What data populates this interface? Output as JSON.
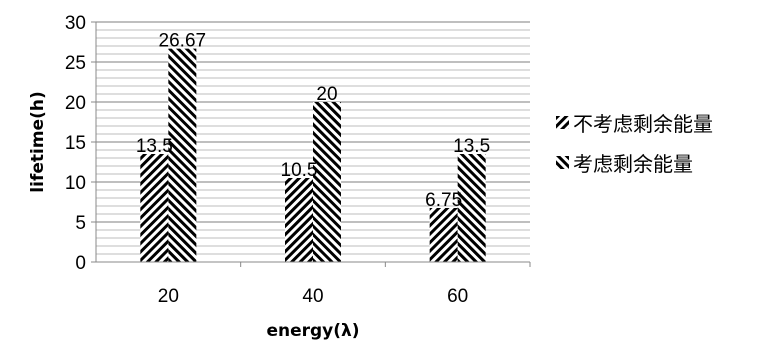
{
  "chart_data": {
    "type": "bar",
    "categories": [
      "20",
      "40",
      "60"
    ],
    "series": [
      {
        "name": "不考虑剩余能量",
        "values": [
          13.5,
          10.5,
          6.75
        ],
        "labels": [
          "13.5",
          "10.5",
          "6.75"
        ]
      },
      {
        "name": "考虑剩余能量",
        "values": [
          26.67,
          20,
          13.5
        ],
        "labels": [
          "26.67",
          "20",
          "13.5"
        ]
      }
    ],
    "xlabel": "energy(λ)",
    "ylabel": "lifetime(h)",
    "ylim": [
      0,
      30
    ],
    "yticks": [
      "0",
      "5",
      "10",
      "15",
      "20",
      "25",
      "30"
    ],
    "grid": true,
    "legend_position": "right"
  }
}
